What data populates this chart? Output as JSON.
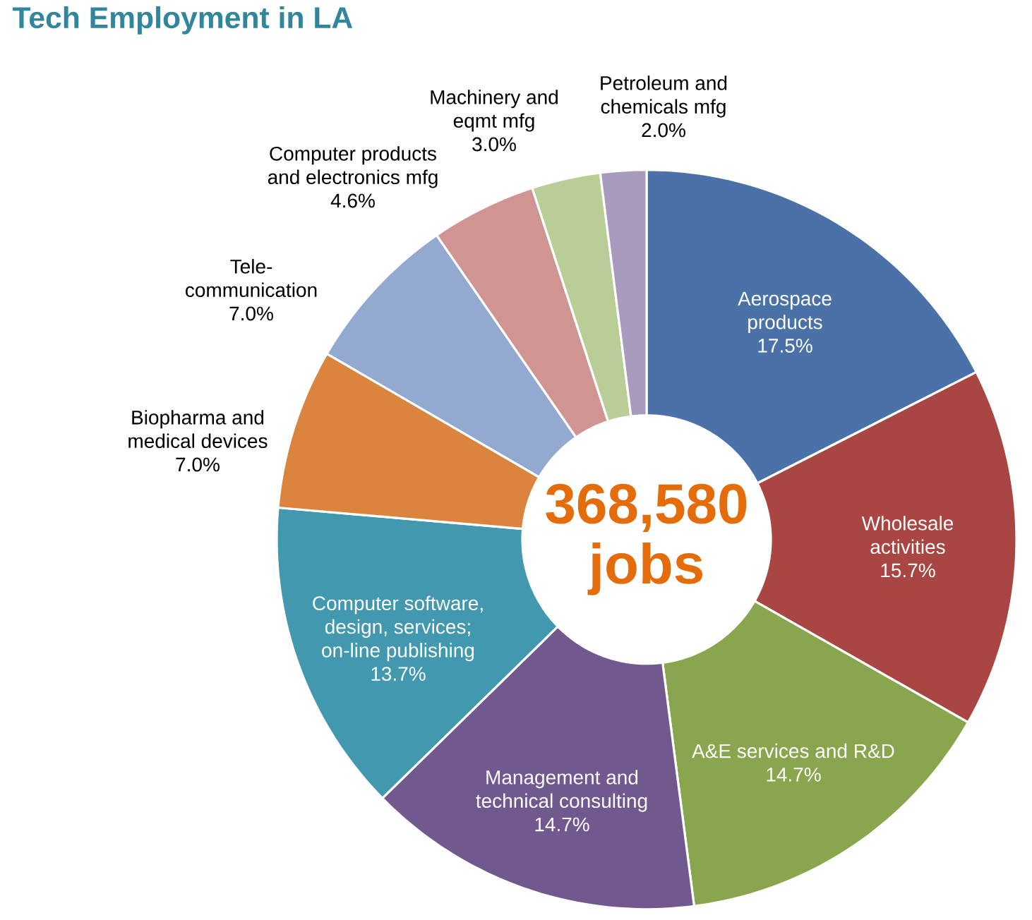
{
  "chart_data": {
    "type": "donut",
    "title": "Tech Employment in LA",
    "categories": [
      "Aerospace products",
      "Wholesale activities",
      "A&E services and R&D",
      "Management and technical consulting",
      "Computer software, design, services; on-line publishing",
      "Biopharma and medical devices",
      "Tele-communication",
      "Computer products and electronics mfg",
      "Machinery and eqmt mfg",
      "Petroleum and chemicals mfg"
    ],
    "values": [
      17.5,
      15.7,
      14.7,
      14.7,
      13.7,
      7.0,
      7.0,
      4.6,
      3.0,
      2.0
    ],
    "value_labels": [
      "17.5%",
      "15.7%",
      "14.7%",
      "14.7%",
      "13.7%",
      "7.0%",
      "7.0%",
      "4.6%",
      "3.0%",
      "2.0%"
    ],
    "colors": [
      "#4a72a8",
      "#a94543",
      "#89a54e",
      "#71588f",
      "#4198af",
      "#db843d",
      "#93a9cf",
      "#d09493",
      "#b9cd96",
      "#a99bbd"
    ],
    "annotations": [
      "368,580 jobs"
    ]
  }
}
